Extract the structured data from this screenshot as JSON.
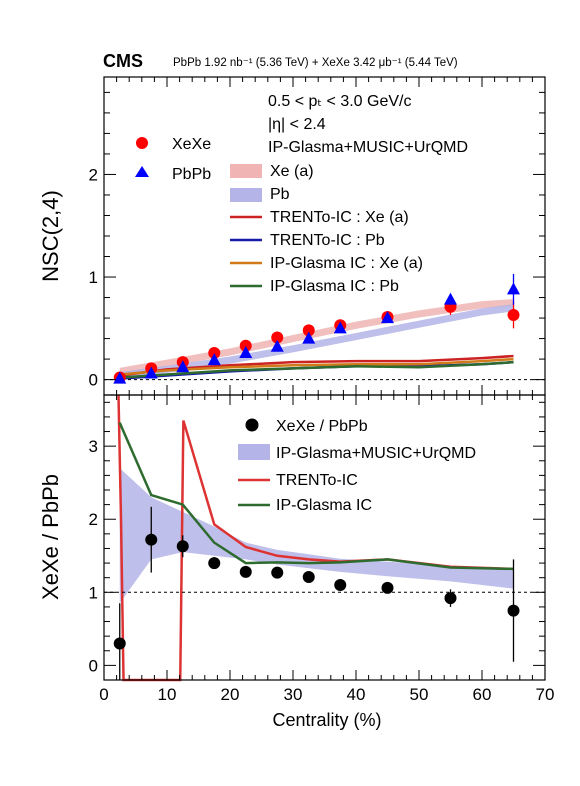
{
  "header": {
    "brand": "CMS",
    "dataset_text": "PbPb 1.92 nb⁻¹ (5.36 TeV) + XeXe 3.42 μb⁻¹ (5.44 TeV)"
  },
  "chart_data": [
    {
      "type": "scatter",
      "panel": "top",
      "ylabel": "NSC(2,4)",
      "xlim": [
        0,
        70
      ],
      "ylim": [
        -0.15,
        2.95
      ],
      "yticks": [
        0,
        1,
        2
      ],
      "reference_line_y": 0,
      "cuts": [
        "0.5 < pₜ < 3.0 GeV/c",
        "|η| < 2.4"
      ],
      "model_label": "IP-Glasma+MUSIC+UrQMD",
      "series": [
        {
          "name": "XeXe",
          "kind": "points",
          "marker": "circle",
          "color": "#ff0000",
          "x": [
            2.5,
            7.5,
            12.5,
            17.5,
            22.5,
            27.5,
            32.5,
            37.5,
            45,
            55,
            65
          ],
          "y": [
            0.02,
            0.11,
            0.17,
            0.26,
            0.33,
            0.41,
            0.48,
            0.53,
            0.61,
            0.71,
            0.63
          ],
          "err": [
            0.02,
            0.03,
            0.03,
            0.03,
            0.03,
            0.04,
            0.04,
            0.05,
            0.05,
            0.08,
            0.13
          ]
        },
        {
          "name": "PbPb",
          "kind": "points",
          "marker": "triangle",
          "color": "#0000ff",
          "x": [
            2.5,
            7.5,
            12.5,
            17.5,
            22.5,
            27.5,
            32.5,
            37.5,
            45,
            55,
            65
          ],
          "y": [
            0.01,
            0.06,
            0.12,
            0.19,
            0.26,
            0.32,
            0.4,
            0.5,
            0.6,
            0.78,
            0.88
          ],
          "err": [
            0.01,
            0.01,
            0.02,
            0.02,
            0.02,
            0.02,
            0.03,
            0.03,
            0.04,
            0.05,
            0.15
          ]
        },
        {
          "name": "Xe (a)",
          "kind": "band",
          "color": "#f0b4b4",
          "x": [
            2.5,
            10,
            20,
            30,
            40,
            50,
            60,
            65
          ],
          "y": [
            0.08,
            0.16,
            0.27,
            0.4,
            0.53,
            0.64,
            0.73,
            0.75
          ],
          "halfwidth": 0.035
        },
        {
          "name": "Pb",
          "kind": "band",
          "color": "#b4b4e8",
          "x": [
            2.5,
            10,
            20,
            30,
            40,
            50,
            60,
            65
          ],
          "y": [
            0.04,
            0.1,
            0.19,
            0.3,
            0.42,
            0.54,
            0.66,
            0.7
          ],
          "halfwidth": 0.035
        },
        {
          "name": "TRENTo-IC : Xe (a)",
          "kind": "line",
          "color": "#cc2222",
          "x": [
            2.5,
            10,
            20,
            30,
            40,
            50,
            60,
            65
          ],
          "y": [
            0.04,
            0.1,
            0.14,
            0.17,
            0.18,
            0.18,
            0.21,
            0.23
          ]
        },
        {
          "name": "TRENTo-IC : Pb",
          "kind": "line",
          "color": "#1a1aa8",
          "x": [
            2.5,
            10,
            20,
            30,
            40,
            50,
            60,
            65
          ],
          "y": [
            0.01,
            0.04,
            0.08,
            0.11,
            0.13,
            0.13,
            0.15,
            0.17
          ]
        },
        {
          "name": "IP-Glasma IC : Xe (a)",
          "kind": "line",
          "color": "#d07a1a",
          "x": [
            2.5,
            10,
            20,
            30,
            40,
            50,
            60,
            65
          ],
          "y": [
            0.05,
            0.09,
            0.12,
            0.14,
            0.15,
            0.15,
            0.18,
            0.2
          ]
        },
        {
          "name": "IP-Glasma IC : Pb",
          "kind": "line",
          "color": "#2e6b2e",
          "x": [
            2.5,
            10,
            20,
            30,
            40,
            50,
            60,
            65
          ],
          "y": [
            0.02,
            0.05,
            0.09,
            0.11,
            0.13,
            0.12,
            0.15,
            0.17
          ]
        }
      ]
    },
    {
      "type": "scatter",
      "panel": "bottom",
      "xlabel": "Centrality (%)",
      "ylabel": "XeXe / PbPb",
      "xlim": [
        0,
        70
      ],
      "ylim": [
        -0.2,
        3.7
      ],
      "xticks": [
        0,
        10,
        20,
        30,
        40,
        50,
        60,
        70
      ],
      "yticks": [
        0,
        1,
        2,
        3
      ],
      "reference_line_y": 1,
      "series": [
        {
          "name": "XeXe / PbPb",
          "kind": "points",
          "marker": "circle",
          "color": "#000000",
          "x": [
            2.5,
            7.5,
            12.5,
            17.5,
            22.5,
            27.5,
            32.5,
            37.5,
            45,
            55,
            65
          ],
          "y": [
            0.3,
            1.72,
            1.63,
            1.4,
            1.28,
            1.27,
            1.21,
            1.1,
            1.06,
            0.92,
            0.75
          ],
          "err": [
            0.55,
            0.45,
            0.15,
            0.08,
            0.06,
            0.06,
            0.04,
            0.04,
            0.04,
            0.12,
            0.7
          ]
        },
        {
          "name": "IP-Glasma+MUSIC+UrQMD",
          "kind": "band",
          "color": "#b4b4e8",
          "x": [
            2.5,
            7.5,
            12.5,
            17.5,
            22.5,
            27.5,
            32.5,
            37.5,
            45,
            55,
            65
          ],
          "low": [
            0.85,
            1.45,
            1.55,
            1.5,
            1.45,
            1.38,
            1.33,
            1.28,
            1.22,
            1.15,
            1.05
          ],
          "high": [
            2.7,
            2.3,
            2.1,
            1.9,
            1.68,
            1.58,
            1.52,
            1.46,
            1.42,
            1.36,
            1.3
          ]
        },
        {
          "name": "TRENTo-IC",
          "kind": "line",
          "color": "#dd3333",
          "x": [
            2.3,
            2.7,
            3.1,
            12.1,
            12.6,
            17.5,
            22.5,
            27.5,
            32.5,
            37.5,
            45,
            55,
            65
          ],
          "y": [
            3.7,
            2.0,
            -0.2,
            -0.2,
            3.35,
            1.93,
            1.62,
            1.5,
            1.45,
            1.42,
            1.45,
            1.35,
            1.32
          ]
        },
        {
          "name": "IP-Glasma IC",
          "kind": "line",
          "color": "#2e6b2e",
          "x": [
            2.5,
            7.5,
            12.5,
            17.5,
            22.5,
            27.5,
            32.5,
            37.5,
            45,
            55,
            65
          ],
          "y": [
            3.32,
            2.33,
            2.2,
            1.68,
            1.4,
            1.41,
            1.4,
            1.41,
            1.45,
            1.34,
            1.32
          ]
        }
      ]
    }
  ]
}
